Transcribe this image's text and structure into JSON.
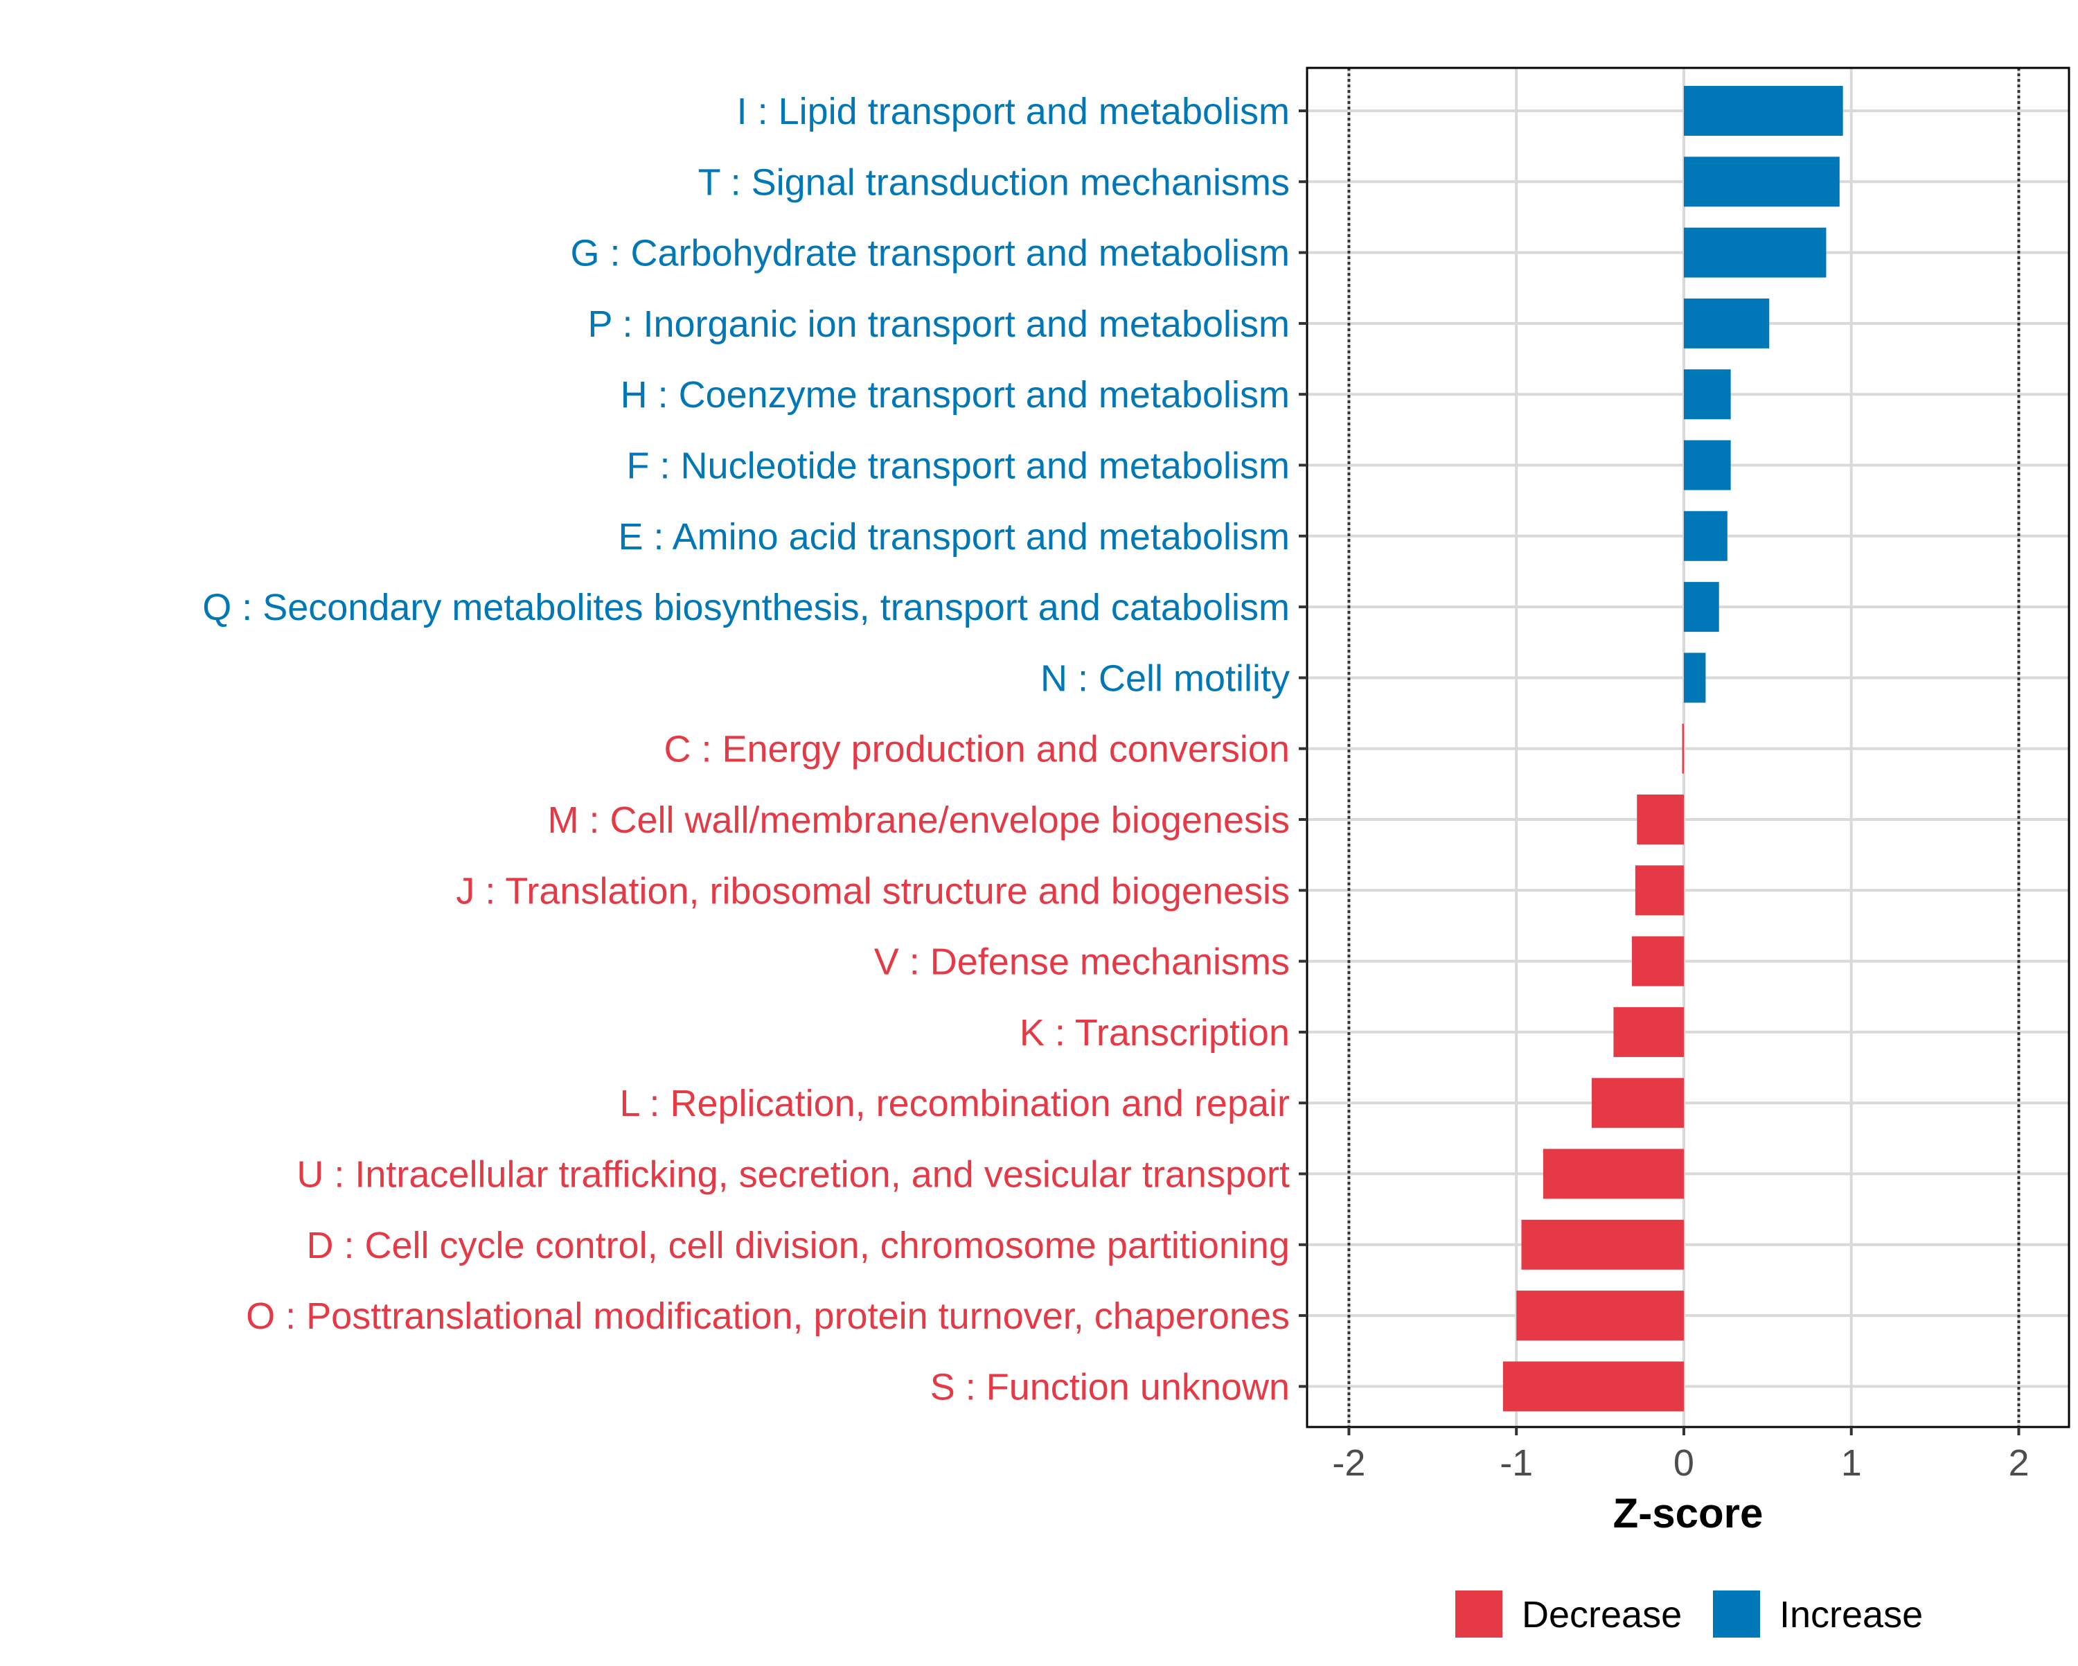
{
  "chart_data": {
    "type": "bar",
    "orientation": "horizontal",
    "title": "",
    "xlabel": "Z-score",
    "ylabel": "",
    "xlim": [
      -2.25,
      2.3
    ],
    "x_ticks": [
      -2,
      -1,
      0,
      1,
      2
    ],
    "x_tick_labels": [
      "-2",
      "-1",
      "0",
      "1",
      "2"
    ],
    "reference_lines": [
      -2,
      2
    ],
    "grid": true,
    "legend_position": "bottom",
    "colors": {
      "Decrease": "#E63946",
      "Increase": "#0077B6",
      "grid": "#d9d9d9",
      "axis": "#000000",
      "tick_text": "#4d4d4d",
      "reference_line": "#333333"
    },
    "legend": [
      {
        "name": "Decrease",
        "color": "#E63946"
      },
      {
        "name": "Increase",
        "color": "#0077B6"
      }
    ],
    "categories": [
      "I : Lipid transport and metabolism",
      "T : Signal transduction mechanisms",
      "G : Carbohydrate transport and metabolism",
      "P : Inorganic ion transport and metabolism",
      "H : Coenzyme transport and metabolism",
      "F : Nucleotide transport and metabolism",
      "E : Amino acid transport and metabolism",
      "Q : Secondary metabolites biosynthesis, transport and catabolism",
      "N : Cell motility",
      "C : Energy production and conversion",
      "M : Cell wall/membrane/envelope biogenesis",
      "J : Translation, ribosomal structure and biogenesis",
      "V : Defense mechanisms",
      "K : Transcription",
      "L : Replication, recombination and repair",
      "U : Intracellular trafficking, secretion, and vesicular transport",
      "D : Cell cycle control, cell division, chromosome partitioning",
      "O : Posttranslational modification, protein turnover, chaperones",
      "S : Function unknown"
    ],
    "values": [
      0.95,
      0.93,
      0.85,
      0.51,
      0.28,
      0.28,
      0.26,
      0.21,
      0.13,
      -0.01,
      -0.28,
      -0.29,
      -0.31,
      -0.42,
      -0.55,
      -0.84,
      -0.97,
      -1.0,
      -1.08
    ],
    "groups": [
      "Increase",
      "Increase",
      "Increase",
      "Increase",
      "Increase",
      "Increase",
      "Increase",
      "Increase",
      "Increase",
      "Decrease",
      "Decrease",
      "Decrease",
      "Decrease",
      "Decrease",
      "Decrease",
      "Decrease",
      "Decrease",
      "Decrease",
      "Decrease"
    ]
  }
}
